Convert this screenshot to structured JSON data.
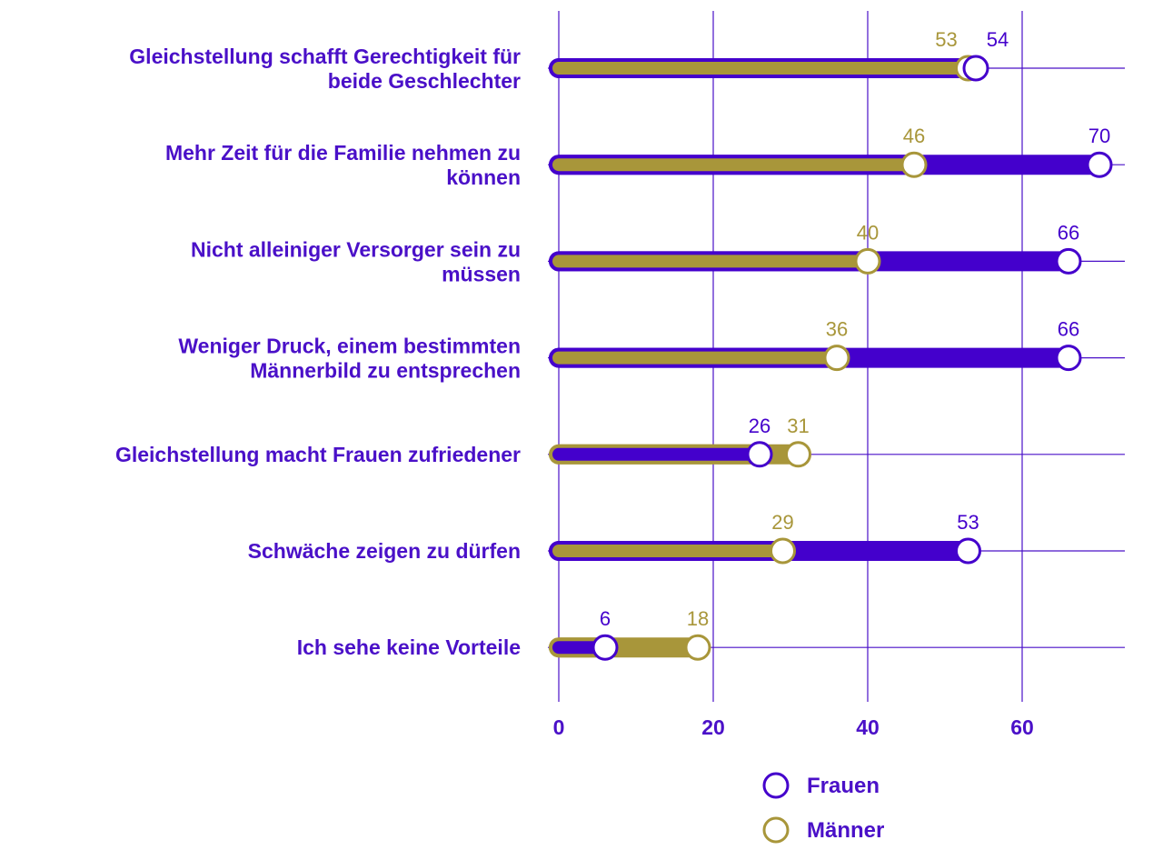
{
  "colors": {
    "frauen": "#4400cc",
    "maenner": "#a8963a",
    "grid": "#4a10c8",
    "label": "#4a10c8",
    "background": "#ffffff"
  },
  "chart_data": {
    "type": "dumbbell",
    "title": "",
    "xlabel": "",
    "ylabel": "",
    "xlim": [
      0,
      70
    ],
    "xticks": [
      0,
      20,
      40,
      60
    ],
    "grid": true,
    "legend_position": "bottom",
    "categories": [
      [
        "Gleichstellung schafft Gerechtigkeit für",
        "beide Geschlechter"
      ],
      [
        "Mehr Zeit für die Familie nehmen zu",
        "können"
      ],
      [
        "Nicht alleiniger Versorger sein zu",
        "müssen"
      ],
      [
        "Weniger Druck, einem bestimmten",
        "Männerbild zu entsprechen"
      ],
      [
        "Gleichstellung macht Frauen zufriedener"
      ],
      [
        "Schwäche zeigen zu dürfen"
      ],
      [
        "Ich sehe keine Vorteile"
      ]
    ],
    "series": [
      {
        "name": "Frauen",
        "color": "#4400cc",
        "values": [
          54,
          70,
          66,
          66,
          26,
          53,
          6
        ]
      },
      {
        "name": "Männer",
        "color": "#a8963a",
        "values": [
          53,
          46,
          40,
          36,
          31,
          29,
          18
        ]
      }
    ]
  }
}
